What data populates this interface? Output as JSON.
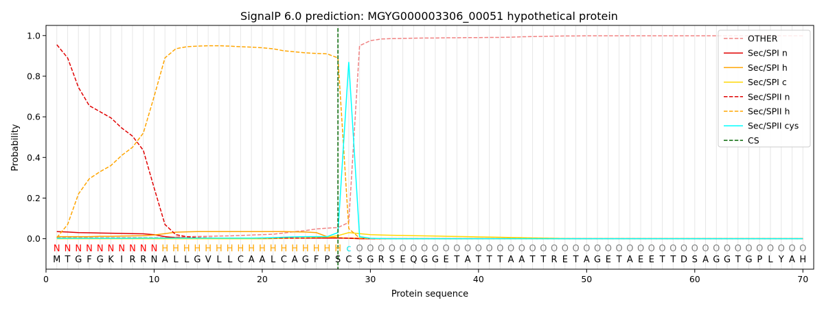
{
  "chart_data": {
    "type": "line",
    "title": "SignalP 6.0 prediction: MGYG000003306_00051 hypothetical protein",
    "xlabel": "Protein sequence",
    "ylabel": "Probability",
    "xlim": [
      0,
      71
    ],
    "ylim": [
      -0.15,
      1.05
    ],
    "x_ticks": [
      "0",
      "10",
      "20",
      "30",
      "40",
      "50",
      "60",
      "70"
    ],
    "y_ticks": [
      "0.0",
      "0.2",
      "0.4",
      "0.6",
      "0.8",
      "1.0"
    ],
    "grid": "vertical lines at each residue position",
    "legend_position": "top-right",
    "sequence": [
      "M",
      "T",
      "G",
      "F",
      "G",
      "K",
      "I",
      "R",
      "R",
      "N",
      "A",
      "L",
      "L",
      "G",
      "V",
      "L",
      "L",
      "C",
      "A",
      "A",
      "L",
      "C",
      "A",
      "G",
      "F",
      "P",
      "S",
      "C",
      "S",
      "G",
      "R",
      "S",
      "E",
      "Q",
      "G",
      "G",
      "E",
      "T",
      "A",
      "T",
      "T",
      "T",
      "A",
      "A",
      "T",
      "T",
      "R",
      "E",
      "T",
      "A",
      "G",
      "E",
      "T",
      "A",
      "E",
      "E",
      "T",
      "T",
      "D",
      "S",
      "A",
      "G",
      "G",
      "T",
      "G",
      "P",
      "L",
      "Y",
      "A",
      "H"
    ],
    "annotation": [
      "N",
      "N",
      "N",
      "N",
      "N",
      "N",
      "N",
      "N",
      "N",
      "N",
      "H",
      "H",
      "H",
      "H",
      "H",
      "H",
      "H",
      "H",
      "H",
      "H",
      "H",
      "H",
      "H",
      "H",
      "H",
      "H",
      "H",
      "C",
      "O",
      "O",
      "O",
      "O",
      "O",
      "O",
      "O",
      "O",
      "O",
      "O",
      "O",
      "O",
      "O",
      "O",
      "O",
      "O",
      "O",
      "O",
      "O",
      "O",
      "O",
      "O",
      "O",
      "O",
      "O",
      "O",
      "O",
      "O",
      "O",
      "O",
      "O",
      "O",
      "O",
      "O",
      "O",
      "O",
      "O",
      "O",
      "O",
      "O",
      "O",
      "O"
    ],
    "annotation_colors": {
      "N": "#ff0000",
      "H": "#ffa500",
      "C": "#00e5e5",
      "O": "#808080"
    },
    "cleavage_site": 27,
    "series": [
      {
        "name": "OTHER",
        "color": "#f08080",
        "dash": "dashed",
        "values": [
          0.005,
          0.005,
          0.005,
          0.005,
          0.005,
          0.005,
          0.005,
          0.005,
          0.005,
          0.005,
          0.005,
          0.008,
          0.01,
          0.011,
          0.012,
          0.013,
          0.014,
          0.016,
          0.018,
          0.02,
          0.022,
          0.028,
          0.035,
          0.04,
          0.048,
          0.052,
          0.055,
          0.08,
          0.95,
          0.975,
          0.983,
          0.985,
          0.986,
          0.987,
          0.988,
          0.988,
          0.989,
          0.989,
          0.99,
          0.99,
          0.991,
          0.991,
          0.992,
          0.994,
          0.995,
          0.996,
          0.997,
          0.998,
          0.998,
          0.999,
          0.999,
          0.999,
          0.999,
          0.999,
          0.999,
          0.999,
          0.999,
          0.999,
          0.999,
          0.999,
          0.999,
          0.999,
          0.999,
          0.999,
          0.999,
          0.999,
          0.999,
          0.999,
          0.999,
          0.999
        ]
      },
      {
        "name": "Sec/SPI n",
        "color": "#e00000",
        "dash": "solid",
        "values": [
          0.035,
          0.033,
          0.03,
          0.029,
          0.028,
          0.027,
          0.026,
          0.025,
          0.024,
          0.02,
          0.01,
          0.005,
          0.004,
          0.003,
          0.003,
          0.003,
          0.003,
          0.003,
          0.003,
          0.003,
          0.003,
          0.003,
          0.003,
          0.003,
          0.003,
          0.003,
          0.003,
          0.002,
          0,
          0,
          0,
          0,
          0,
          0,
          0,
          0,
          0,
          0,
          0,
          0,
          0,
          0,
          0,
          0,
          0,
          0,
          0,
          0,
          0,
          0,
          0,
          0,
          0,
          0,
          0,
          0,
          0,
          0,
          0,
          0,
          0,
          0,
          0,
          0,
          0,
          0,
          0,
          0,
          0,
          0
        ]
      },
      {
        "name": "Sec/SPI h",
        "color": "#ffa500",
        "dash": "solid",
        "values": [
          0.01,
          0.01,
          0.01,
          0.01,
          0.012,
          0.012,
          0.013,
          0.014,
          0.015,
          0.018,
          0.025,
          0.032,
          0.034,
          0.035,
          0.035,
          0.035,
          0.035,
          0.035,
          0.035,
          0.035,
          0.035,
          0.035,
          0.034,
          0.033,
          0.03,
          0.01,
          0.005,
          0.003,
          0.002,
          0.001,
          0,
          0,
          0,
          0,
          0,
          0,
          0,
          0,
          0,
          0,
          0,
          0,
          0,
          0,
          0,
          0,
          0,
          0,
          0,
          0,
          0,
          0,
          0,
          0,
          0,
          0,
          0,
          0,
          0,
          0,
          0,
          0,
          0,
          0,
          0,
          0,
          0,
          0,
          0,
          0
        ]
      },
      {
        "name": "Sec/SPI c",
        "color": "#ffd700",
        "dash": "solid",
        "values": [
          0,
          0,
          0,
          0,
          0,
          0,
          0,
          0,
          0,
          0,
          0,
          0,
          0,
          0,
          0,
          0,
          0,
          0,
          0,
          0,
          0.001,
          0.002,
          0.003,
          0.004,
          0.006,
          0.008,
          0.015,
          0.03,
          0.025,
          0.02,
          0.018,
          0.017,
          0.016,
          0.015,
          0.014,
          0.013,
          0.012,
          0.011,
          0.01,
          0.009,
          0.008,
          0.007,
          0.006,
          0.005,
          0.004,
          0.003,
          0.002,
          0.001,
          0,
          0,
          0,
          0,
          0,
          0,
          0,
          0,
          0,
          0,
          0,
          0,
          0,
          0,
          0,
          0,
          0,
          0,
          0,
          0,
          0,
          0
        ]
      },
      {
        "name": "Sec/SPII n",
        "color": "#e00000",
        "dash": "dashed",
        "values": [
          0.955,
          0.89,
          0.745,
          0.655,
          0.625,
          0.595,
          0.545,
          0.505,
          0.435,
          0.25,
          0.07,
          0.02,
          0.01,
          0.005,
          0.004,
          0.003,
          0.003,
          0.003,
          0.003,
          0.003,
          0.003,
          0.003,
          0.003,
          0.003,
          0.003,
          0.003,
          0.003,
          0.003,
          0.001,
          0,
          0,
          0,
          0,
          0,
          0,
          0,
          0,
          0,
          0,
          0,
          0,
          0,
          0,
          0,
          0,
          0,
          0,
          0,
          0,
          0,
          0,
          0,
          0,
          0,
          0,
          0,
          0,
          0,
          0,
          0,
          0,
          0,
          0,
          0,
          0,
          0,
          0,
          0,
          0,
          0
        ]
      },
      {
        "name": "Sec/SPII h",
        "color": "#ffa500",
        "dash": "dashed",
        "values": [
          0.005,
          0.07,
          0.22,
          0.295,
          0.33,
          0.36,
          0.41,
          0.45,
          0.52,
          0.7,
          0.89,
          0.935,
          0.945,
          0.948,
          0.95,
          0.95,
          0.948,
          0.945,
          0.943,
          0.94,
          0.935,
          0.925,
          0.92,
          0.915,
          0.912,
          0.91,
          0.89,
          0.05,
          0.003,
          0.001,
          0,
          0,
          0,
          0,
          0,
          0,
          0,
          0,
          0,
          0,
          0,
          0,
          0,
          0,
          0,
          0,
          0,
          0,
          0,
          0,
          0,
          0,
          0,
          0,
          0,
          0,
          0,
          0,
          0,
          0,
          0,
          0,
          0,
          0,
          0,
          0,
          0,
          0,
          0,
          0
        ]
      },
      {
        "name": "Sec/SPII cys",
        "color": "#00ffff",
        "dash": "solid",
        "values": [
          0.002,
          0.002,
          0.002,
          0.002,
          0.002,
          0.002,
          0.002,
          0.002,
          0.003,
          0.003,
          0.003,
          0.003,
          0.003,
          0.003,
          0.003,
          0.003,
          0.003,
          0.003,
          0.003,
          0.004,
          0.005,
          0.007,
          0.009,
          0.01,
          0.01,
          0.01,
          0.03,
          0.87,
          0.01,
          0.002,
          0.001,
          0,
          0,
          0,
          0,
          0,
          0,
          0,
          0,
          0,
          0,
          0,
          0,
          0,
          0,
          0,
          0,
          0,
          0,
          0,
          0,
          0,
          0,
          0,
          0,
          0,
          0,
          0,
          0,
          0,
          0,
          0,
          0,
          0,
          0,
          0,
          0,
          0,
          0,
          0
        ]
      },
      {
        "name": "CS",
        "color": "#006400",
        "dash": "dashed",
        "values": []
      }
    ]
  }
}
